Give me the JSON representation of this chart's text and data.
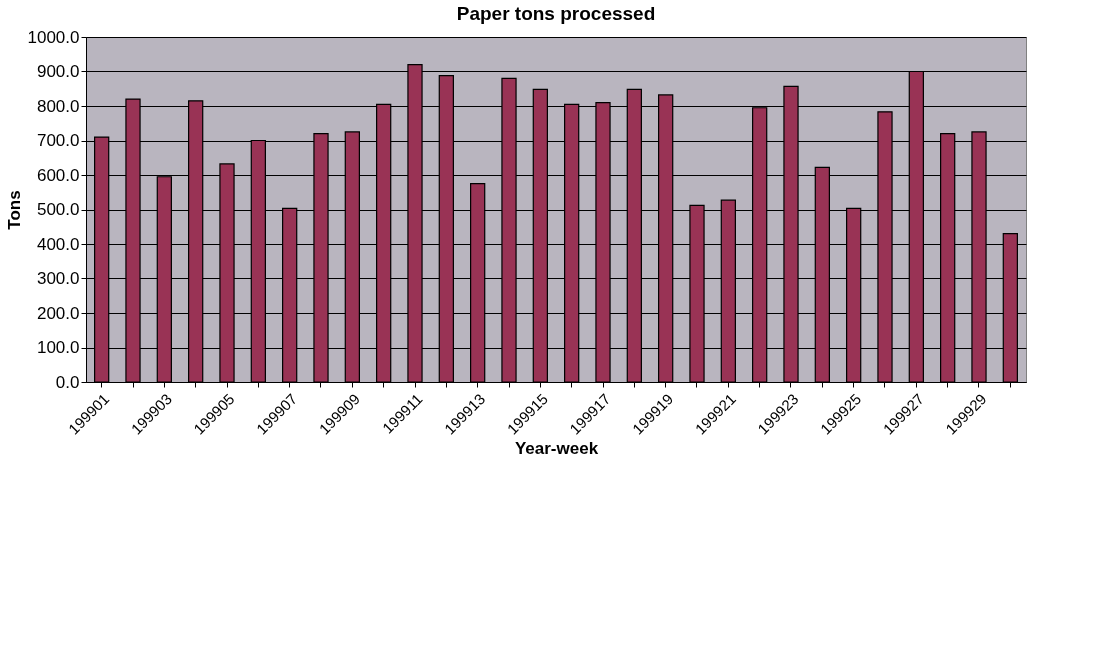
{
  "chart_data": {
    "type": "bar",
    "title": "Paper tons processed",
    "xlabel": "Year-week",
    "ylabel": "Tons",
    "categories": [
      "199901",
      null,
      "199903",
      null,
      "199905",
      null,
      "199907",
      null,
      "199909",
      null,
      "199911",
      null,
      "199913",
      null,
      "199915",
      null,
      "199917",
      null,
      "199919",
      null,
      "199921",
      null,
      "199923",
      null,
      "199925",
      null,
      "199927",
      null,
      "199929",
      null
    ],
    "values": [
      710,
      820,
      595,
      815,
      632,
      700,
      503,
      720,
      725,
      805,
      920,
      888,
      575,
      880,
      848,
      805,
      810,
      848,
      832,
      512,
      527,
      795,
      857,
      622,
      503,
      783,
      900,
      720,
      725,
      430
    ],
    "color": "#993355",
    "ylim": [
      0,
      1000
    ],
    "yticks": [
      {
        "value": 0,
        "label": "0.0"
      },
      {
        "value": 100,
        "label": "100.0"
      },
      {
        "value": 200,
        "label": "200.0"
      },
      {
        "value": 300,
        "label": "300.0"
      },
      {
        "value": 400,
        "label": "400.0"
      },
      {
        "value": 500,
        "label": "500.0"
      },
      {
        "value": 600,
        "label": "600.0"
      },
      {
        "value": 700,
        "label": "700.0"
      },
      {
        "value": 800,
        "label": "800.0"
      },
      {
        "value": 900,
        "label": "900.0"
      },
      {
        "value": 1000,
        "label": "1000.0"
      }
    ],
    "grid": "y"
  }
}
